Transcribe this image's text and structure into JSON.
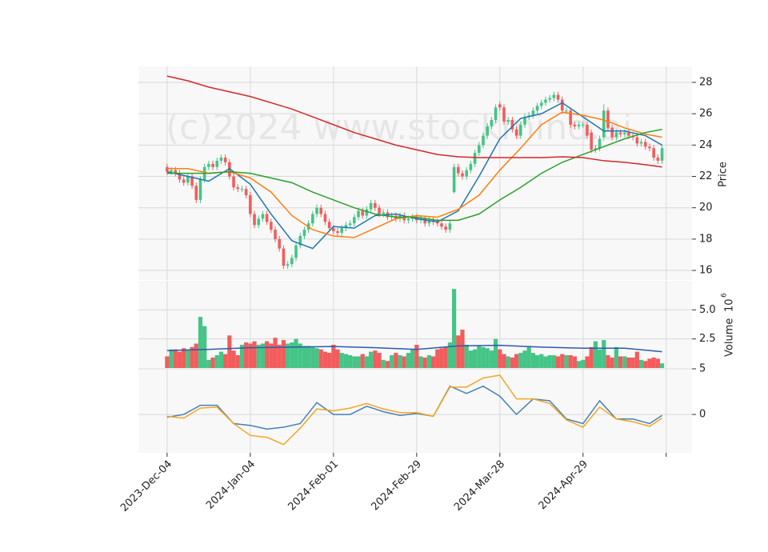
{
  "chart_data": [
    {
      "type": "candlestick",
      "ylabel": "Price",
      "watermark": "(c)2024 www.stockmind.ai",
      "up_color": "#45c486",
      "down_color": "#f25c5c",
      "xlim": [
        -6.9,
        126.2
      ],
      "ylim": [
        15.39,
        29.02
      ],
      "yticks": [
        16,
        18,
        20,
        22,
        24,
        26,
        28
      ],
      "grid": true,
      "open": [
        22.6,
        22.3,
        22.4,
        22.2,
        21.8,
        21.6,
        22.0,
        21.4,
        20.5,
        21.8,
        22.6,
        22.8,
        22.6,
        23.0,
        23.2,
        22.9,
        22.0,
        21.3,
        21.2,
        21.2,
        20.8,
        19.6,
        18.9,
        19.3,
        19.6,
        19.1,
        18.6,
        18.0,
        17.4,
        16.3,
        16.4,
        16.8,
        17.6,
        18.2,
        18.6,
        19.0,
        19.6,
        20.0,
        19.6,
        19.1,
        18.7,
        18.5,
        18.4,
        18.7,
        18.9,
        19.0,
        19.4,
        19.8,
        19.5,
        19.9,
        20.3,
        20.0,
        19.6,
        19.7,
        19.4,
        19.5,
        19.3,
        19.5,
        19.2,
        19.3,
        19.4,
        19.2,
        19.3,
        19.0,
        19.2,
        19.1,
        19.0,
        18.8,
        18.6,
        21.0,
        22.6,
        22.2,
        22.0,
        22.4,
        22.8,
        23.5,
        24.0,
        24.6,
        25.2,
        25.6,
        26.6,
        26.4,
        25.5,
        25.6,
        25.0,
        24.6,
        25.3,
        25.8,
        25.9,
        26.2,
        26.5,
        26.7,
        26.9,
        27.0,
        27.2,
        26.9,
        26.2,
        26.2,
        25.3,
        25.2,
        25.3,
        25.3,
        24.8,
        23.7,
        23.8,
        24.5,
        26.2,
        25.1,
        24.5,
        24.8,
        24.7,
        24.8,
        24.6,
        24.5,
        24.1,
        24.2,
        23.9,
        23.8,
        23.2,
        23.0
      ],
      "high": [
        22.8,
        22.6,
        22.6,
        22.4,
        22.0,
        22.2,
        22.2,
        21.6,
        22.0,
        22.8,
        23.0,
        23.0,
        23.2,
        23.4,
        23.4,
        23.1,
        22.2,
        21.5,
        21.4,
        21.4,
        21.0,
        19.8,
        19.5,
        19.8,
        19.8,
        19.3,
        18.8,
        18.2,
        17.6,
        16.6,
        17.0,
        17.8,
        18.4,
        18.8,
        19.2,
        19.8,
        20.2,
        20.2,
        19.8,
        19.3,
        18.9,
        18.7,
        18.9,
        19.1,
        19.2,
        19.6,
        20.0,
        20.0,
        20.1,
        20.5,
        20.5,
        20.2,
        19.9,
        19.9,
        19.7,
        19.7,
        19.7,
        19.7,
        19.5,
        19.6,
        19.6,
        19.5,
        19.5,
        19.4,
        19.4,
        19.3,
        19.2,
        19.0,
        19.2,
        22.8,
        22.8,
        22.4,
        22.6,
        23.0,
        23.7,
        24.2,
        24.8,
        25.4,
        25.8,
        26.6,
        26.8,
        26.6,
        25.8,
        25.8,
        25.2,
        25.5,
        26.0,
        26.1,
        26.4,
        26.7,
        26.9,
        27.1,
        27.2,
        27.4,
        27.4,
        27.1,
        26.4,
        26.4,
        25.5,
        25.5,
        25.5,
        25.5,
        25.0,
        24.0,
        24.6,
        26.6,
        26.4,
        25.3,
        25.0,
        25.0,
        25.0,
        25.0,
        24.8,
        24.7,
        24.4,
        24.4,
        24.1,
        24.0,
        23.4,
        24.0
      ],
      "low": [
        22.1,
        22.1,
        22.0,
        21.6,
        21.4,
        21.4,
        21.2,
        20.3,
        20.3,
        21.6,
        22.4,
        22.4,
        22.4,
        22.8,
        22.7,
        21.8,
        21.1,
        21.0,
        21.0,
        20.6,
        19.4,
        18.7,
        18.7,
        19.1,
        18.9,
        18.4,
        17.8,
        17.2,
        16.1,
        16.1,
        16.2,
        16.6,
        17.4,
        18.0,
        18.4,
        18.8,
        19.4,
        19.4,
        18.9,
        18.5,
        18.3,
        18.2,
        18.2,
        18.5,
        18.7,
        18.8,
        19.2,
        19.3,
        19.3,
        19.7,
        19.8,
        19.4,
        19.4,
        19.2,
        19.2,
        19.1,
        19.1,
        19.0,
        19.0,
        19.1,
        19.0,
        19.0,
        18.8,
        18.8,
        18.9,
        18.8,
        18.6,
        18.4,
        18.4,
        20.9,
        22.0,
        21.8,
        21.8,
        22.2,
        22.6,
        23.3,
        23.8,
        24.4,
        25.0,
        25.4,
        26.2,
        25.3,
        25.3,
        24.8,
        24.4,
        24.4,
        25.1,
        25.6,
        25.7,
        26.0,
        26.3,
        26.5,
        26.7,
        26.8,
        26.7,
        26.0,
        26.0,
        25.1,
        25.0,
        25.0,
        25.1,
        24.4,
        23.5,
        23.5,
        23.6,
        24.3,
        24.9,
        24.3,
        24.3,
        24.5,
        24.5,
        24.4,
        24.3,
        23.9,
        23.9,
        23.7,
        23.6,
        23.0,
        22.8,
        22.8
      ],
      "close": [
        22.3,
        22.4,
        22.2,
        21.8,
        21.6,
        22.0,
        21.4,
        20.5,
        21.8,
        22.6,
        22.8,
        22.6,
        23.0,
        23.2,
        22.9,
        22.0,
        21.3,
        21.2,
        21.2,
        20.8,
        19.6,
        18.9,
        19.3,
        19.6,
        19.1,
        18.6,
        18.0,
        17.4,
        16.3,
        16.4,
        16.8,
        17.6,
        18.2,
        18.6,
        19.0,
        19.6,
        20.0,
        19.6,
        19.1,
        18.7,
        18.5,
        18.4,
        18.7,
        18.9,
        19.0,
        19.4,
        19.8,
        19.5,
        19.9,
        20.3,
        20.0,
        19.6,
        19.7,
        19.4,
        19.5,
        19.3,
        19.5,
        19.2,
        19.3,
        19.4,
        19.2,
        19.3,
        19.0,
        19.2,
        19.1,
        19.0,
        18.8,
        18.6,
        19.0,
        22.6,
        22.2,
        22.0,
        22.4,
        22.8,
        23.5,
        24.0,
        24.6,
        25.2,
        25.6,
        26.4,
        26.4,
        25.5,
        25.6,
        25.0,
        24.6,
        25.3,
        25.8,
        25.9,
        26.2,
        26.5,
        26.7,
        26.9,
        27.0,
        27.2,
        26.9,
        26.2,
        26.2,
        25.3,
        25.2,
        25.3,
        25.3,
        24.6,
        23.7,
        23.8,
        24.4,
        26.2,
        25.1,
        24.5,
        24.8,
        24.7,
        24.8,
        24.6,
        24.5,
        24.1,
        24.2,
        23.9,
        23.8,
        23.2,
        23.0,
        23.8
      ],
      "series": [
        {
          "color": "#1f77b4",
          "x": [
            0,
            5,
            10,
            15,
            20,
            25,
            30,
            35,
            40,
            45,
            50,
            55,
            60,
            65,
            70,
            75,
            80,
            85,
            90,
            95,
            100,
            105,
            110,
            115,
            119
          ],
          "values": [
            22.3,
            22.0,
            21.7,
            22.5,
            21.5,
            19.6,
            17.9,
            17.4,
            18.8,
            18.7,
            19.5,
            19.6,
            19.3,
            19.1,
            19.8,
            22.0,
            24.4,
            25.7,
            26.0,
            26.7,
            25.8,
            24.9,
            24.9,
            24.6,
            24.0
          ]
        },
        {
          "color": "#ff7f0e",
          "x": [
            0,
            5,
            10,
            15,
            20,
            25,
            30,
            35,
            40,
            45,
            50,
            55,
            60,
            65,
            70,
            75,
            80,
            85,
            90,
            95,
            100,
            105,
            110,
            115,
            119
          ],
          "values": [
            22.5,
            22.5,
            22.2,
            22.3,
            21.9,
            21.0,
            19.5,
            18.6,
            18.2,
            18.1,
            18.7,
            19.3,
            19.5,
            19.4,
            19.9,
            20.8,
            22.4,
            23.8,
            25.3,
            26.1,
            25.9,
            25.6,
            25.1,
            24.7,
            24.5
          ]
        },
        {
          "color": "#2ca02c",
          "x": [
            0,
            5,
            10,
            15,
            20,
            25,
            30,
            35,
            40,
            45,
            50,
            55,
            60,
            65,
            70,
            75,
            80,
            85,
            90,
            95,
            100,
            105,
            110,
            115,
            119
          ],
          "values": [
            22.2,
            22.2,
            22.2,
            22.3,
            22.2,
            21.9,
            21.6,
            21.0,
            20.5,
            20.0,
            19.6,
            19.4,
            19.4,
            19.2,
            19.2,
            19.6,
            20.5,
            21.3,
            22.2,
            22.9,
            23.4,
            23.9,
            24.4,
            24.8,
            25.0
          ]
        },
        {
          "color": "#d62728",
          "x": [
            0,
            5,
            10,
            15,
            20,
            25,
            30,
            35,
            40,
            45,
            50,
            55,
            60,
            65,
            70,
            75,
            80,
            85,
            90,
            95,
            100,
            105,
            110,
            115,
            119
          ],
          "values": [
            28.4,
            28.1,
            27.7,
            27.4,
            27.1,
            26.7,
            26.3,
            25.8,
            25.3,
            24.8,
            24.4,
            24.0,
            23.7,
            23.4,
            23.25,
            23.2,
            23.2,
            23.2,
            23.2,
            23.25,
            23.2,
            23.0,
            22.9,
            22.75,
            22.6
          ]
        }
      ]
    },
    {
      "type": "bar",
      "ylabel": "Volume",
      "scale_base": "10",
      "scale_exponent": "6",
      "xlim": [
        -6.9,
        126.2
      ],
      "ylim": [
        0,
        7.5
      ],
      "yticks": [
        2.5,
        {
          "value": 5,
          "label": "5.0"
        }
      ],
      "grid": true,
      "values": [
        1.0,
        1.6,
        1.6,
        1.4,
        1.7,
        1.6,
        1.8,
        2.1,
        4.4,
        3.6,
        0.7,
        0.9,
        1.1,
        1.4,
        1.2,
        2.8,
        1.5,
        1.1,
        2.0,
        2.2,
        2.1,
        2.3,
        2.0,
        2.1,
        2.3,
        2.1,
        2.6,
        2.0,
        2.4,
        2.1,
        2.2,
        2.5,
        2.1,
        1.9,
        1.9,
        1.8,
        1.7,
        1.6,
        1.4,
        1.3,
        2.0,
        1.6,
        1.3,
        1.2,
        1.1,
        1.0,
        1.0,
        1.2,
        1.0,
        1.4,
        1.5,
        1.3,
        0.7,
        0.6,
        1.1,
        1.3,
        1.1,
        1.0,
        1.3,
        1.6,
        2.0,
        1.0,
        0.9,
        1.1,
        1.0,
        1.6,
        1.7,
        1.8,
        2.2,
        6.8,
        2.8,
        3.3,
        2.0,
        1.5,
        1.6,
        1.9,
        1.8,
        1.7,
        1.5,
        2.5,
        1.6,
        1.2,
        1.0,
        0.9,
        1.2,
        1.3,
        1.5,
        1.8,
        1.3,
        1.1,
        1.2,
        1.0,
        1.1,
        1.1,
        1.0,
        1.2,
        1.1,
        1.1,
        1.0,
        0.6,
        0.7,
        1.0,
        1.8,
        2.3,
        1.6,
        2.4,
        1.1,
        0.9,
        1.8,
        1.0,
        1.0,
        0.9,
        0.9,
        1.4,
        0.7,
        0.6,
        0.8,
        0.9,
        0.8,
        0.4
      ],
      "series": [
        {
          "color": "#2a5caa",
          "x": [
            0,
            10,
            20,
            30,
            40,
            50,
            60,
            70,
            80,
            90,
            100,
            110,
            119
          ],
          "values": [
            1.5,
            1.6,
            1.75,
            1.8,
            1.85,
            1.75,
            1.6,
            1.9,
            1.95,
            1.8,
            1.7,
            1.7,
            1.4
          ]
        }
      ]
    },
    {
      "type": "line",
      "xlim": [
        -6.9,
        126.2
      ],
      "ylim": [
        -4.2,
        5
      ],
      "yticks": [
        0,
        5
      ],
      "grid": true,
      "xticks": [
        {
          "value": 0,
          "label": "2023-Dec-04"
        },
        {
          "value": 20,
          "label": "2024-Jan-04"
        },
        {
          "value": 40,
          "label": "2024-Feb-01"
        },
        {
          "value": 60,
          "label": "2024-Feb-29"
        },
        {
          "value": 80,
          "label": "2024-Mar-28"
        },
        {
          "value": 100,
          "label": "2024-Apr-29"
        },
        {
          "value": 120,
          "label": null
        }
      ],
      "series": [
        {
          "color": "#4682b4",
          "x": [
            0,
            4,
            8,
            12,
            16,
            20,
            24,
            28,
            32,
            36,
            40,
            44,
            48,
            52,
            56,
            60,
            64,
            68,
            72,
            76,
            80,
            84,
            88,
            92,
            96,
            100,
            104,
            108,
            112,
            116,
            119
          ],
          "values": [
            -0.3,
            0,
            1.0,
            1.0,
            -1.0,
            -1.2,
            -1.6,
            -1.4,
            -1.0,
            1.3,
            0.0,
            0.0,
            0.9,
            0.3,
            -0.1,
            0.1,
            -0.2,
            3.1,
            2.3,
            3.1,
            2.0,
            0.0,
            1.7,
            1.5,
            -0.5,
            -1.0,
            1.5,
            -0.5,
            -0.5,
            -1.0,
            -0.1
          ]
        },
        {
          "color": "#f5a623",
          "x": [
            0,
            4,
            8,
            12,
            16,
            20,
            24,
            28,
            32,
            36,
            40,
            44,
            48,
            52,
            56,
            60,
            64,
            68,
            72,
            76,
            80,
            84,
            88,
            92,
            96,
            100,
            104,
            108,
            112,
            116,
            119
          ],
          "values": [
            -0.2,
            -0.4,
            0.7,
            0.8,
            -1.0,
            -2.3,
            -2.5,
            -3.3,
            -1.5,
            0.6,
            0.4,
            0.7,
            1.2,
            0.6,
            0.2,
            0.2,
            -0.2,
            3.0,
            3.0,
            4.0,
            4.3,
            1.7,
            1.7,
            1.2,
            -0.6,
            -1.4,
            0.8,
            -0.5,
            -0.8,
            -1.3,
            -0.4
          ]
        }
      ]
    }
  ]
}
